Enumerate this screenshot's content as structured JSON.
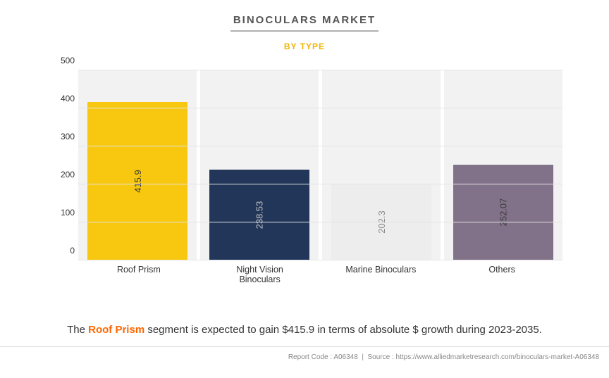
{
  "header": {
    "title": "BINOCULARS MARKET",
    "subtitle": "BY TYPE"
  },
  "chart": {
    "type": "bar",
    "ylim": [
      0,
      500
    ],
    "ytick_step": 100,
    "yticks": [
      0,
      100,
      200,
      300,
      400,
      500
    ],
    "grid_color": "#e4e4e4",
    "plot_background": "#f2f2f2",
    "tick_fontsize": 12,
    "tick_color": "#333333",
    "bar_width_pct": 84,
    "categories": [
      "Roof Prism",
      "Night Vision\nBinoculars",
      "Marine Binoculars",
      "Others"
    ],
    "values": [
      415.9,
      238.53,
      202.3,
      252.07
    ],
    "value_labels": [
      "415.9",
      "238.53",
      "202.3",
      "252.07"
    ],
    "bar_colors": [
      "#f7c80f",
      "#213659",
      "#ededed",
      "#827289"
    ],
    "bar_label_colors": [
      "#3a3a3a",
      "#c2c2c2",
      "#8a8a8a",
      "#3a3a3a"
    ],
    "bar_label_fontsize": 13
  },
  "caption": {
    "pre": "The ",
    "highlight": "Roof Prism",
    "post": " segment is expected to gain $415.9 in terms of absolute $ growth during 2023-2035."
  },
  "footer": {
    "report_code_label": "Report Code :",
    "report_code": "A06348",
    "source_label": "Source :",
    "source": "https://www.alliedmarketresearch.com/binoculars-market-A06348"
  }
}
